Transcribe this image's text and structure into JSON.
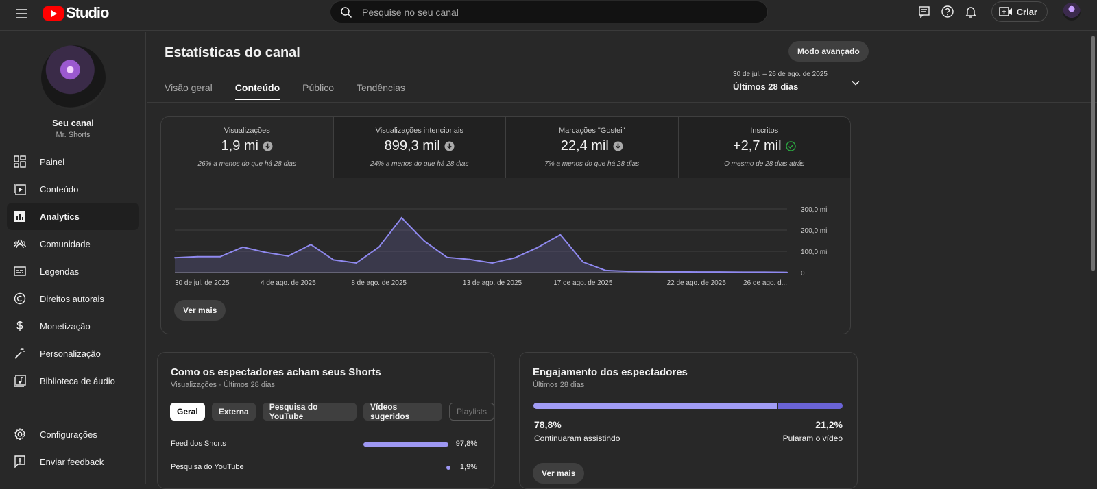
{
  "topbar": {
    "logo_text": "Studio",
    "search_placeholder": "Pesquise no seu canal",
    "create_label": "Criar"
  },
  "sidebar": {
    "channel_title": "Seu canal",
    "channel_name": "Mr. Shorts",
    "items": [
      {
        "label": "Painel",
        "icon": "dashboard-icon"
      },
      {
        "label": "Conteúdo",
        "icon": "content-icon"
      },
      {
        "label": "Analytics",
        "icon": "analytics-icon"
      },
      {
        "label": "Comunidade",
        "icon": "community-icon"
      },
      {
        "label": "Legendas",
        "icon": "subtitles-icon"
      },
      {
        "label": "Direitos autorais",
        "icon": "copyright-icon"
      },
      {
        "label": "Monetização",
        "icon": "monetization-icon"
      },
      {
        "label": "Personalização",
        "icon": "customization-icon"
      },
      {
        "label": "Biblioteca de áudio",
        "icon": "audio-library-icon"
      }
    ],
    "bottom_items": [
      {
        "label": "Configurações",
        "icon": "settings-icon"
      },
      {
        "label": "Enviar feedback",
        "icon": "feedback-icon"
      }
    ],
    "active_item": "Analytics"
  },
  "header": {
    "title": "Estatísticas do canal",
    "advanced_mode": "Modo avançado",
    "tabs": [
      "Visão geral",
      "Conteúdo",
      "Público",
      "Tendências"
    ],
    "active_tab": "Conteúdo",
    "date_range_small": "30 de jul. – 26 de ago. de 2025",
    "date_range_label": "Últimos 28 dias"
  },
  "metrics": [
    {
      "label": "Visualizações",
      "value": "1,9 mi",
      "status": "down",
      "note": "26% a menos do que há 28 dias"
    },
    {
      "label": "Visualizações intencionais",
      "value": "899,3 mil",
      "status": "down",
      "note": "24% a menos do que há 28 dias"
    },
    {
      "label": "Marcações \"Gostei\"",
      "value": "22,4 mil",
      "status": "down",
      "note": "7% a menos do que há 28 dias"
    },
    {
      "label": "Inscritos",
      "value": "+2,7 mil",
      "status": "same",
      "note": "O mesmo de 28 dias atrás"
    }
  ],
  "chart_data": {
    "type": "area",
    "series": [
      {
        "values": [
          70,
          75,
          75,
          120,
          95,
          78,
          132,
          60,
          45,
          120,
          258,
          148,
          72,
          62,
          45,
          70,
          118,
          178,
          50,
          10,
          6,
          5,
          4,
          3,
          3,
          2,
          2,
          1
        ]
      }
    ],
    "x_tick_labels": [
      "30 de jul. de 2025",
      "4 de ago. de 2025",
      "8 de ago. de 2025",
      "13 de ago. de 2025",
      "17 de ago. de 2025",
      "22 de ago. de 2025",
      "26 de ago. d..."
    ],
    "y_tick_labels": [
      "300,0 mil",
      "200,0 mil",
      "100,0 mil",
      "0"
    ],
    "ylim": [
      0,
      300
    ],
    "y_unit": "mil",
    "grid": true,
    "color": "#8f89ef"
  },
  "see_more": "Ver mais",
  "discovery": {
    "title": "Como os espectadores acham seus Shorts",
    "subtitle": "Visualizações · Últimos 28 dias",
    "chips": [
      "Geral",
      "Externa",
      "Pesquisa do YouTube",
      "Vídeos sugeridos",
      "Playlists"
    ],
    "rows": [
      {
        "label": "Feed dos Shorts",
        "pct_value": 97.8,
        "pct": "97,8%"
      },
      {
        "label": "Pesquisa do YouTube",
        "pct_value": 1.9,
        "pct": "1,9%"
      }
    ]
  },
  "engagement": {
    "title": "Engajamento dos espectadores",
    "subtitle": "Últimos 28 dias",
    "stayed_value": 78.8,
    "stayed_pct": "78,8%",
    "stayed_label": "Continuaram assistindo",
    "swiped_pct": "21,2%",
    "swiped_label": "Pularam o vídeo"
  },
  "colors": {
    "accent": "#8f89ef",
    "red": "#ff0000",
    "ok_green": "#2ba640"
  }
}
